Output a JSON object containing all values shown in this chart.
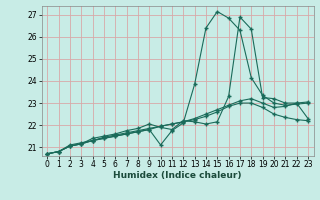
{
  "xlabel": "Humidex (Indice chaleur)",
  "bg_color": "#c8ece6",
  "grid_color": "#d8a8a8",
  "line_color": "#1a6b5a",
  "xlim": [
    -0.5,
    23.5
  ],
  "ylim": [
    20.6,
    27.4
  ],
  "yticks": [
    21,
    22,
    23,
    24,
    25,
    26,
    27
  ],
  "xticks": [
    0,
    1,
    2,
    3,
    4,
    5,
    6,
    7,
    8,
    9,
    10,
    11,
    12,
    13,
    14,
    15,
    16,
    17,
    18,
    19,
    20,
    21,
    22,
    23
  ],
  "line1_x": [
    0,
    1,
    2,
    3,
    4,
    5,
    6,
    7,
    8,
    9,
    10,
    11,
    12,
    13,
    14,
    15,
    16,
    17,
    18,
    19,
    20,
    21,
    22,
    23
  ],
  "line1_y": [
    20.7,
    20.8,
    21.1,
    21.2,
    21.3,
    21.45,
    21.55,
    21.65,
    21.75,
    21.85,
    21.95,
    22.05,
    22.15,
    22.3,
    22.5,
    22.7,
    22.9,
    23.1,
    23.2,
    23.0,
    22.8,
    22.85,
    23.0,
    23.05
  ],
  "line2_x": [
    0,
    1,
    2,
    3,
    4,
    5,
    6,
    7,
    8,
    9,
    10,
    11,
    12,
    13,
    14,
    15,
    16,
    17,
    18,
    19,
    20,
    21,
    22,
    23
  ],
  "line2_y": [
    20.7,
    20.8,
    21.05,
    21.15,
    21.3,
    21.4,
    21.5,
    21.6,
    21.7,
    21.8,
    21.1,
    21.75,
    22.1,
    23.85,
    26.4,
    27.15,
    26.85,
    26.3,
    24.15,
    23.35,
    23.0,
    22.9,
    22.95,
    23.0
  ],
  "line3_x": [
    0,
    1,
    2,
    3,
    4,
    5,
    6,
    7,
    8,
    9,
    10,
    11,
    12,
    13,
    14,
    15,
    16,
    17,
    18,
    19,
    20,
    21,
    22,
    23
  ],
  "line3_y": [
    20.7,
    20.8,
    21.05,
    21.15,
    21.4,
    21.5,
    21.6,
    21.75,
    21.85,
    22.05,
    21.9,
    21.8,
    22.2,
    22.15,
    22.05,
    22.15,
    23.3,
    26.9,
    26.35,
    23.25,
    23.2,
    23.0,
    23.0,
    22.3
  ],
  "line4_x": [
    0,
    1,
    2,
    3,
    4,
    5,
    6,
    7,
    8,
    9,
    10,
    11,
    12,
    13,
    14,
    15,
    16,
    17,
    18,
    19,
    20,
    21,
    22,
    23
  ],
  "line4_y": [
    20.7,
    20.8,
    21.05,
    21.15,
    21.3,
    21.4,
    21.5,
    21.6,
    21.7,
    21.8,
    21.95,
    22.05,
    22.15,
    22.25,
    22.4,
    22.6,
    22.85,
    23.0,
    23.0,
    22.8,
    22.5,
    22.35,
    22.25,
    22.2
  ]
}
